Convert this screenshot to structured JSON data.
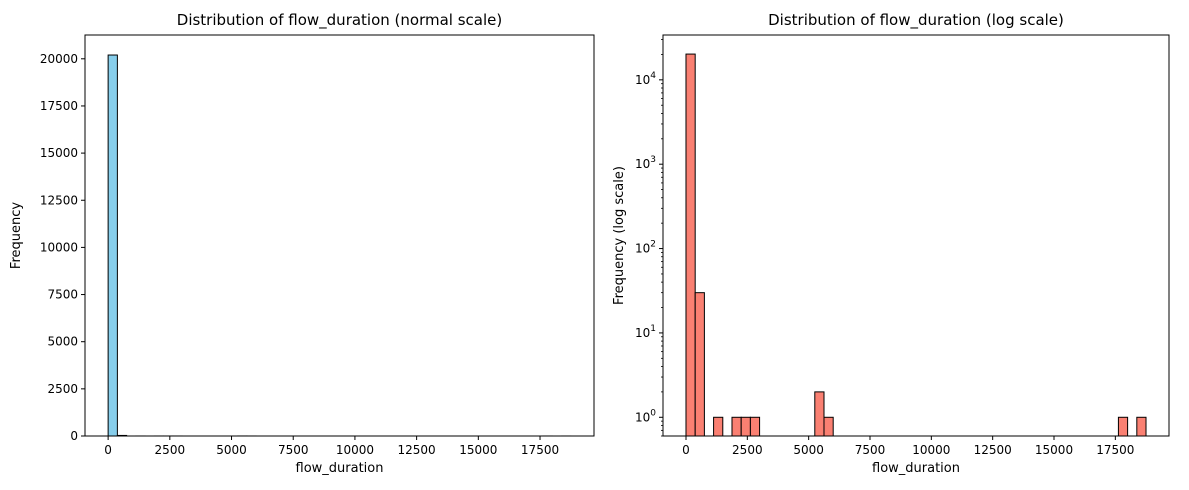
{
  "chart_data": [
    {
      "type": "bar",
      "title": "Distribution of flow_duration (normal scale)",
      "xlabel": "flow_duration",
      "ylabel": "Frequency",
      "yscale": "linear",
      "bar_color": "#87ceeb",
      "edge_color": "#000000",
      "bin_width": 375,
      "xlim": [
        -937,
        19687
      ],
      "ylim": [
        0,
        21262
      ],
      "x_ticks": [
        0,
        2500,
        5000,
        7500,
        10000,
        12500,
        15000,
        17500
      ],
      "x_tick_labels": [
        "0",
        "2500",
        "5000",
        "7500",
        "10000",
        "12500",
        "15000",
        "17500"
      ],
      "y_ticks": [
        0,
        2500,
        5000,
        7500,
        10000,
        12500,
        15000,
        17500,
        20000
      ],
      "y_tick_labels": [
        "0",
        "2500",
        "5000",
        "7500",
        "10000",
        "12500",
        "15000",
        "17500",
        "20000"
      ],
      "bins": [
        {
          "x": 0,
          "count": 20200
        },
        {
          "x": 375,
          "count": 30
        },
        {
          "x": 1125,
          "count": 1
        },
        {
          "x": 1875,
          "count": 1
        },
        {
          "x": 2250,
          "count": 1
        },
        {
          "x": 2625,
          "count": 1
        },
        {
          "x": 5250,
          "count": 2
        },
        {
          "x": 5625,
          "count": 1
        },
        {
          "x": 17625,
          "count": 1
        },
        {
          "x": 18375,
          "count": 1
        }
      ]
    },
    {
      "type": "bar",
      "title": "Distribution of flow_duration (log scale)",
      "xlabel": "flow_duration",
      "ylabel": "Frequency (log scale)",
      "yscale": "log",
      "bar_color": "#fa8072",
      "edge_color": "#000000",
      "bin_width": 375,
      "xlim": [
        -937,
        19687
      ],
      "ylim": [
        0.6,
        34000
      ],
      "x_ticks": [
        0,
        2500,
        5000,
        7500,
        10000,
        12500,
        15000,
        17500
      ],
      "x_tick_labels": [
        "0",
        "2500",
        "5000",
        "7500",
        "10000",
        "12500",
        "15000",
        "17500"
      ],
      "y_ticks": [
        1,
        10,
        100,
        1000,
        10000
      ],
      "y_tick_exponents": [
        "0",
        "1",
        "2",
        "3",
        "4"
      ],
      "y_tick_base": "10",
      "bins": [
        {
          "x": 0,
          "count": 20200
        },
        {
          "x": 375,
          "count": 30
        },
        {
          "x": 1125,
          "count": 1
        },
        {
          "x": 1875,
          "count": 1
        },
        {
          "x": 2250,
          "count": 1
        },
        {
          "x": 2625,
          "count": 1
        },
        {
          "x": 5250,
          "count": 2
        },
        {
          "x": 5625,
          "count": 1
        },
        {
          "x": 17625,
          "count": 1
        },
        {
          "x": 18375,
          "count": 1
        }
      ]
    }
  ]
}
